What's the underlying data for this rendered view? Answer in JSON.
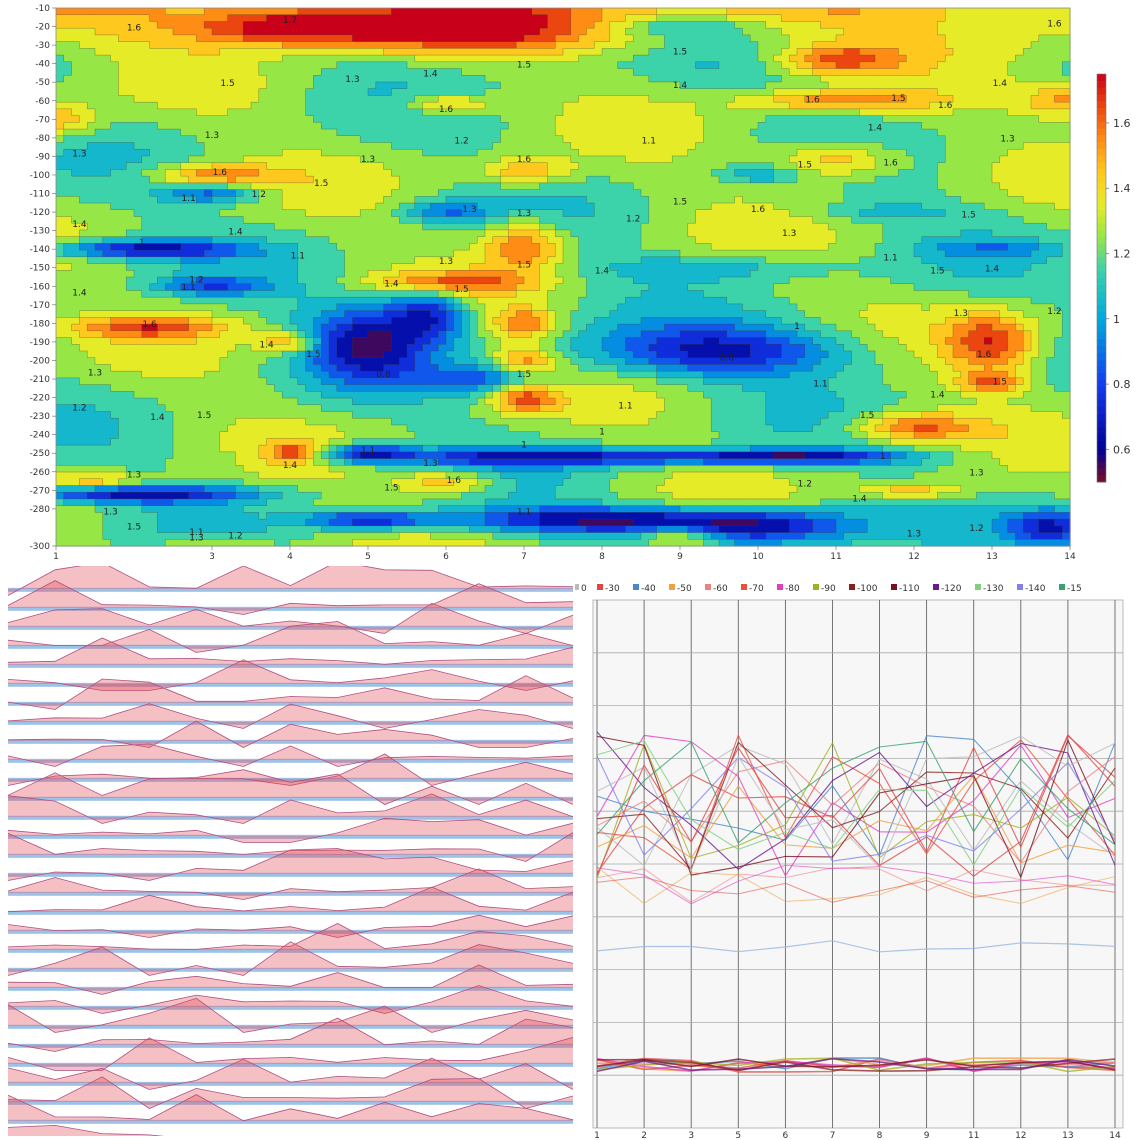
{
  "chart_data": [
    {
      "type": "heatmap",
      "subtype": "filled-contour",
      "colormap": "jet",
      "x_ticks": [
        "1",
        "3",
        "4",
        "5",
        "6",
        "7",
        "8",
        "9",
        "10",
        "11",
        "12",
        "13",
        "14"
      ],
      "y_ticks": [
        "-10",
        "-20",
        "-30",
        "-40",
        "-50",
        "-60",
        "-70",
        "-80",
        "-90",
        "-100",
        "-110",
        "-120",
        "-130",
        "-140",
        "-150",
        "-160",
        "-170",
        "-180",
        "-190",
        "-200",
        "-210",
        "-220",
        "-230",
        "-240",
        "-250",
        "-260",
        "-270",
        "-280",
        "-300"
      ],
      "colorbar": {
        "ticks": [
          "1.6",
          "1.4",
          "1.2",
          "1",
          "0.8",
          "0.6"
        ],
        "tick_values": [
          1.6,
          1.4,
          1.2,
          1.0,
          0.8,
          0.6
        ],
        "range": [
          0.5,
          1.75
        ]
      },
      "contour_labels": [
        {
          "x": 2,
          "y": -22,
          "t": "1.6"
        },
        {
          "x": 4.0,
          "y": -18,
          "t": "1.7"
        },
        {
          "x": 9.0,
          "y": -35,
          "t": "1.5"
        },
        {
          "x": 7.0,
          "y": -42,
          "t": "1.5"
        },
        {
          "x": 13.8,
          "y": -20,
          "t": "1.6"
        },
        {
          "x": 3.2,
          "y": -52,
          "t": "1.5"
        },
        {
          "x": 4.8,
          "y": -50,
          "t": "1.3"
        },
        {
          "x": 5.8,
          "y": -47,
          "t": "1.4"
        },
        {
          "x": 9.0,
          "y": -53,
          "t": "1.4"
        },
        {
          "x": 13.1,
          "y": -52,
          "t": "1.4"
        },
        {
          "x": 6.0,
          "y": -66,
          "t": "1.6"
        },
        {
          "x": 10.7,
          "y": -61,
          "t": "1.6"
        },
        {
          "x": 11.8,
          "y": -60,
          "t": "1.5"
        },
        {
          "x": 12.4,
          "y": -64,
          "t": "1.6"
        },
        {
          "x": 3.0,
          "y": -80,
          "t": "1.3"
        },
        {
          "x": 6.2,
          "y": -83,
          "t": "1.2"
        },
        {
          "x": 8.6,
          "y": -83,
          "t": "1.1"
        },
        {
          "x": 11.5,
          "y": -76,
          "t": "1.4"
        },
        {
          "x": 13.2,
          "y": -82,
          "t": "1.3"
        },
        {
          "x": 1.3,
          "y": -90,
          "t": "1.3"
        },
        {
          "x": 5.0,
          "y": -93,
          "t": "1.3"
        },
        {
          "x": 3.1,
          "y": -100,
          "t": "1.6"
        },
        {
          "x": 4.4,
          "y": -106,
          "t": "1.5"
        },
        {
          "x": 7.0,
          "y": -93,
          "t": "1.6"
        },
        {
          "x": 10.6,
          "y": -96,
          "t": "1.5"
        },
        {
          "x": 11.7,
          "y": -95,
          "t": "1.6"
        },
        {
          "x": 2.7,
          "y": -114,
          "t": "1.1"
        },
        {
          "x": 3.6,
          "y": -112,
          "t": "1.2"
        },
        {
          "x": 9.0,
          "y": -116,
          "t": "1.5"
        },
        {
          "x": 10.0,
          "y": -120,
          "t": "1.6"
        },
        {
          "x": 12.7,
          "y": -123,
          "t": "1.5"
        },
        {
          "x": 1.3,
          "y": -128,
          "t": "1.4"
        },
        {
          "x": 3.3,
          "y": -132,
          "t": "1.4"
        },
        {
          "x": 6.3,
          "y": -120,
          "t": "1.3"
        },
        {
          "x": 7.0,
          "y": -122,
          "t": "1.3"
        },
        {
          "x": 8.4,
          "y": -125,
          "t": "1.2"
        },
        {
          "x": 10.4,
          "y": -133,
          "t": "1.3"
        },
        {
          "x": 2.1,
          "y": -138,
          "t": "1"
        },
        {
          "x": 4.1,
          "y": -145,
          "t": "1.1"
        },
        {
          "x": 6.0,
          "y": -148,
          "t": "1.3"
        },
        {
          "x": 7.0,
          "y": -150,
          "t": "1.5"
        },
        {
          "x": 8.0,
          "y": -153,
          "t": "1.4"
        },
        {
          "x": 11.7,
          "y": -146,
          "t": "1.1"
        },
        {
          "x": 12.3,
          "y": -153,
          "t": "1.5"
        },
        {
          "x": 13.0,
          "y": -152,
          "t": "1.4"
        },
        {
          "x": 5.3,
          "y": -160,
          "t": "1.4"
        },
        {
          "x": 6.2,
          "y": -163,
          "t": "1.5"
        },
        {
          "x": 2.7,
          "y": -162,
          "t": "1.1"
        },
        {
          "x": 2.8,
          "y": -158,
          "t": "1.2"
        },
        {
          "x": 1.3,
          "y": -165,
          "t": "1.4"
        },
        {
          "x": 2.2,
          "y": -182,
          "t": "1.6"
        },
        {
          "x": 12.6,
          "y": -176,
          "t": "1.3"
        },
        {
          "x": 13.8,
          "y": -175,
          "t": "1.2"
        },
        {
          "x": 10.5,
          "y": -183,
          "t": "1"
        },
        {
          "x": 3.7,
          "y": -193,
          "t": "1.4"
        },
        {
          "x": 4.3,
          "y": -198,
          "t": "1.5"
        },
        {
          "x": 12.9,
          "y": -198,
          "t": "1.6"
        },
        {
          "x": 9.6,
          "y": -200,
          "t": "0.8"
        },
        {
          "x": 1.5,
          "y": -208,
          "t": "1.3"
        },
        {
          "x": 5.2,
          "y": -209,
          "t": "0.8"
        },
        {
          "x": 7.0,
          "y": -209,
          "t": "1.5"
        },
        {
          "x": 10.8,
          "y": -214,
          "t": "1.1"
        },
        {
          "x": 13.1,
          "y": -213,
          "t": "1.5"
        },
        {
          "x": 12.3,
          "y": -220,
          "t": "1.4"
        },
        {
          "x": 1.3,
          "y": -227,
          "t": "1.2"
        },
        {
          "x": 2.3,
          "y": -232,
          "t": "1.4"
        },
        {
          "x": 2.9,
          "y": -231,
          "t": "1.5"
        },
        {
          "x": 8.3,
          "y": -226,
          "t": "1.1"
        },
        {
          "x": 11.4,
          "y": -231,
          "t": "1.5"
        },
        {
          "x": 8.0,
          "y": -240,
          "t": "1"
        },
        {
          "x": 5.0,
          "y": -250,
          "t": "1.1"
        },
        {
          "x": 4.0,
          "y": -258,
          "t": "1.4"
        },
        {
          "x": 5.8,
          "y": -257,
          "t": "1.3"
        },
        {
          "x": 7.0,
          "y": -247,
          "t": "1"
        },
        {
          "x": 11.6,
          "y": -253,
          "t": "1"
        },
        {
          "x": 12.8,
          "y": -262,
          "t": "1.3"
        },
        {
          "x": 2.0,
          "y": -263,
          "t": "1.3"
        },
        {
          "x": 6.1,
          "y": -266,
          "t": "1.6"
        },
        {
          "x": 5.3,
          "y": -270,
          "t": "1.5"
        },
        {
          "x": 10.6,
          "y": -268,
          "t": "1.2"
        },
        {
          "x": 11.3,
          "y": -276,
          "t": "1.4"
        },
        {
          "x": 1.7,
          "y": -283,
          "t": "1.3"
        },
        {
          "x": 2.0,
          "y": -291,
          "t": "1.5"
        },
        {
          "x": 2.8,
          "y": -294,
          "t": "1.1"
        },
        {
          "x": 7.0,
          "y": -283,
          "t": "1.1"
        },
        {
          "x": 8.3,
          "y": -289,
          "t": "1.1"
        },
        {
          "x": 12.0,
          "y": -295,
          "t": "1.3"
        },
        {
          "x": 12.8,
          "y": -292,
          "t": "1.2"
        },
        {
          "x": 2.8,
          "y": -297,
          "t": "1.3"
        },
        {
          "x": 3.3,
          "y": -296,
          "t": "1.2"
        }
      ]
    },
    {
      "type": "area",
      "subtype": "stacked-ridge-profiles",
      "colors": {
        "positive": "#e34a55",
        "negative": "#4a8fd6"
      }
    },
    {
      "type": "line",
      "x": [
        1,
        2,
        3,
        5,
        6,
        7,
        8,
        9,
        11,
        12,
        13,
        14
      ],
      "x_ticks": [
        "1",
        "2",
        "3",
        "5",
        "6",
        "7",
        "8",
        "9",
        "11",
        "12",
        "13",
        "14"
      ],
      "legend_items": [
        {
          "label": "0",
          "color": "#bbbbbb"
        },
        {
          "label": "-30",
          "color": "#e04545"
        },
        {
          "label": "-40",
          "color": "#4a86c8"
        },
        {
          "label": "-50",
          "color": "#f0a040"
        },
        {
          "label": "-60",
          "color": "#f08080"
        },
        {
          "label": "-70",
          "color": "#e85040"
        },
        {
          "label": "-80",
          "color": "#e040c0"
        },
        {
          "label": "-90",
          "color": "#a0b020"
        },
        {
          "label": "-100",
          "color": "#8a2020"
        },
        {
          "label": "-110",
          "color": "#7a1020"
        },
        {
          "label": "-120",
          "color": "#6a1a8a"
        },
        {
          "label": "-130",
          "color": "#80d080"
        },
        {
          "label": "-140",
          "color": "#8080f0"
        },
        {
          "label": "-15",
          "color": "#3aa070"
        }
      ]
    }
  ]
}
